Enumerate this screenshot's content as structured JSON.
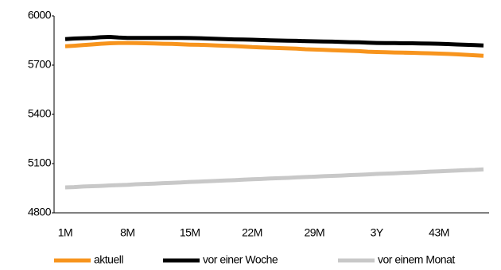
{
  "chart_data": {
    "type": "line",
    "categories": [
      "1M",
      null,
      null,
      null,
      null,
      null,
      null,
      "8M",
      null,
      null,
      null,
      null,
      null,
      null,
      "15M",
      null,
      null,
      null,
      null,
      null,
      null,
      "22M",
      null,
      null,
      null,
      null,
      null,
      null,
      "29M",
      null,
      null,
      null,
      null,
      null,
      null,
      "3Y",
      null,
      null,
      null,
      null,
      null,
      null,
      "43M",
      null,
      null,
      null,
      null,
      null
    ],
    "series": [
      {
        "name": "aktuell",
        "color": "#f7941d",
        "values": [
          5815,
          5818,
          5822,
          5826,
          5830,
          5833,
          5835,
          5835,
          5834,
          5833,
          5832,
          5830,
          5829,
          5827,
          5825,
          5824,
          5822,
          5820,
          5818,
          5816,
          5813,
          5810,
          5808,
          5806,
          5804,
          5802,
          5800,
          5797,
          5795,
          5793,
          5791,
          5789,
          5787,
          5785,
          5782,
          5780,
          5779,
          5777,
          5776,
          5775,
          5773,
          5772,
          5770,
          5768,
          5766,
          5763,
          5760,
          5757
        ]
      },
      {
        "name": "vor einer Woche",
        "color": "#000000",
        "values": [
          5858,
          5862,
          5864,
          5866,
          5870,
          5872,
          5868,
          5866,
          5866,
          5866,
          5866,
          5866,
          5866,
          5866,
          5865,
          5864,
          5862,
          5860,
          5858,
          5857,
          5856,
          5855,
          5853,
          5851,
          5850,
          5849,
          5848,
          5846,
          5845,
          5844,
          5843,
          5842,
          5840,
          5839,
          5837,
          5835,
          5834,
          5834,
          5833,
          5833,
          5832,
          5831,
          5830,
          5828,
          5826,
          5824,
          5822,
          5820
        ]
      },
      {
        "name": "vor einem Monat",
        "color": "#c8c8c8",
        "values": [
          4955,
          4957,
          4960,
          4962,
          4964,
          4967,
          4969,
          4971,
          4974,
          4976,
          4978,
          4981,
          4983,
          4985,
          4988,
          4990,
          4992,
          4995,
          4997,
          4999,
          5002,
          5004,
          5006,
          5009,
          5011,
          5013,
          5016,
          5018,
          5020,
          5023,
          5025,
          5027,
          5030,
          5032,
          5034,
          5037,
          5039,
          5041,
          5044,
          5046,
          5048,
          5051,
          5053,
          5055,
          5058,
          5060,
          5062,
          5065
        ]
      }
    ],
    "ylim": [
      4800,
      6000
    ],
    "yticks": [
      4800,
      5100,
      5400,
      5700,
      6000
    ],
    "grid": false,
    "legend": "bottom"
  }
}
